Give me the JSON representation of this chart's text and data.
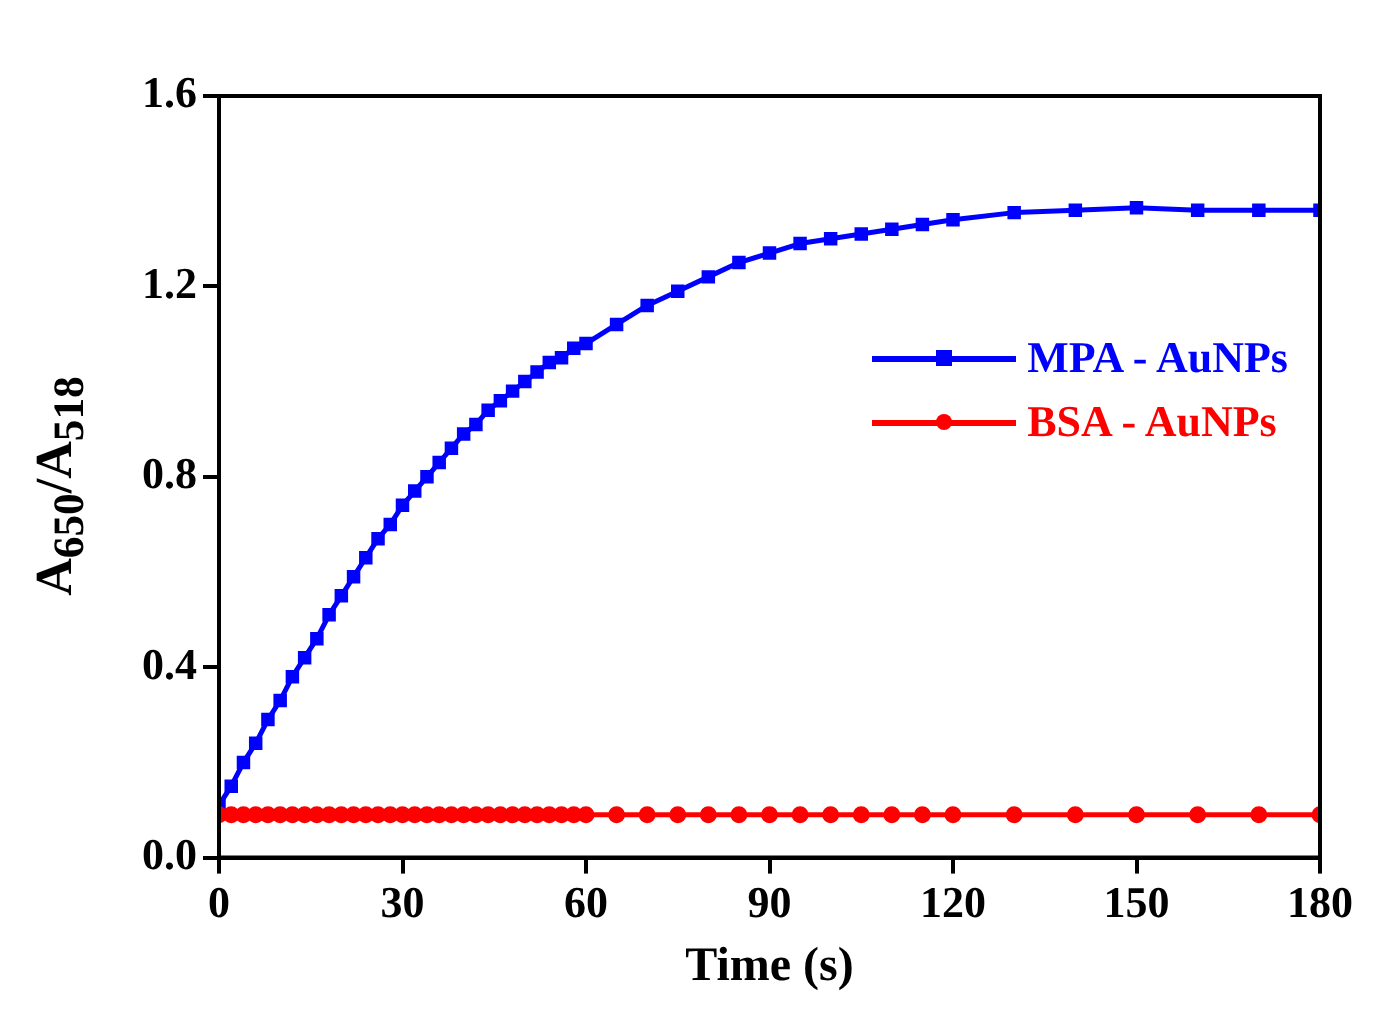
{
  "chart_data": {
    "type": "line",
    "xlabel": "Time (s)",
    "ylabel": "A$_{650}$/A$_{518}$",
    "x": [
      0,
      2,
      4,
      6,
      8,
      10,
      12,
      14,
      16,
      18,
      20,
      22,
      24,
      26,
      28,
      30,
      32,
      34,
      36,
      38,
      40,
      42,
      44,
      46,
      48,
      50,
      52,
      54,
      56,
      58,
      60,
      65,
      70,
      75,
      80,
      85,
      90,
      95,
      100,
      105,
      110,
      115,
      120,
      130,
      140,
      150,
      160,
      170,
      180
    ],
    "series": [
      {
        "name": "MPA - AuNPs",
        "color": "#0000ff",
        "marker": "square",
        "values": [
          0.11,
          0.15,
          0.2,
          0.24,
          0.29,
          0.33,
          0.38,
          0.42,
          0.46,
          0.51,
          0.55,
          0.59,
          0.63,
          0.67,
          0.7,
          0.74,
          0.77,
          0.8,
          0.83,
          0.86,
          0.89,
          0.91,
          0.94,
          0.96,
          0.98,
          1.0,
          1.02,
          1.04,
          1.05,
          1.07,
          1.08,
          1.12,
          1.16,
          1.19,
          1.22,
          1.25,
          1.27,
          1.29,
          1.3,
          1.31,
          1.32,
          1.33,
          1.34,
          1.355,
          1.36,
          1.365,
          1.36,
          1.36,
          1.36
        ]
      },
      {
        "name": "BSA - AuNPs",
        "color": "#ff0000",
        "marker": "circle",
        "values": [
          0.09,
          0.09,
          0.09,
          0.09,
          0.09,
          0.09,
          0.09,
          0.09,
          0.09,
          0.09,
          0.09,
          0.09,
          0.09,
          0.09,
          0.09,
          0.09,
          0.09,
          0.09,
          0.09,
          0.09,
          0.09,
          0.09,
          0.09,
          0.09,
          0.09,
          0.09,
          0.09,
          0.09,
          0.09,
          0.09,
          0.09,
          0.09,
          0.09,
          0.09,
          0.09,
          0.09,
          0.09,
          0.09,
          0.09,
          0.09,
          0.09,
          0.09,
          0.09,
          0.09,
          0.09,
          0.09,
          0.09,
          0.09,
          0.09
        ]
      }
    ],
    "xlim": [
      0,
      180
    ],
    "xticks": [
      0,
      30,
      60,
      90,
      120,
      150,
      180
    ],
    "ylim": [
      0,
      1.6
    ],
    "yticks": [
      {
        "value": 0,
        "label": "0.0"
      },
      {
        "value": 0.4,
        "label": "0.4"
      },
      {
        "value": 0.8,
        "label": "0.8"
      },
      {
        "value": 1.2,
        "label": "1.2"
      },
      {
        "value": 1.6,
        "label": "1.6"
      }
    ],
    "grid": false,
    "legend": "right"
  }
}
